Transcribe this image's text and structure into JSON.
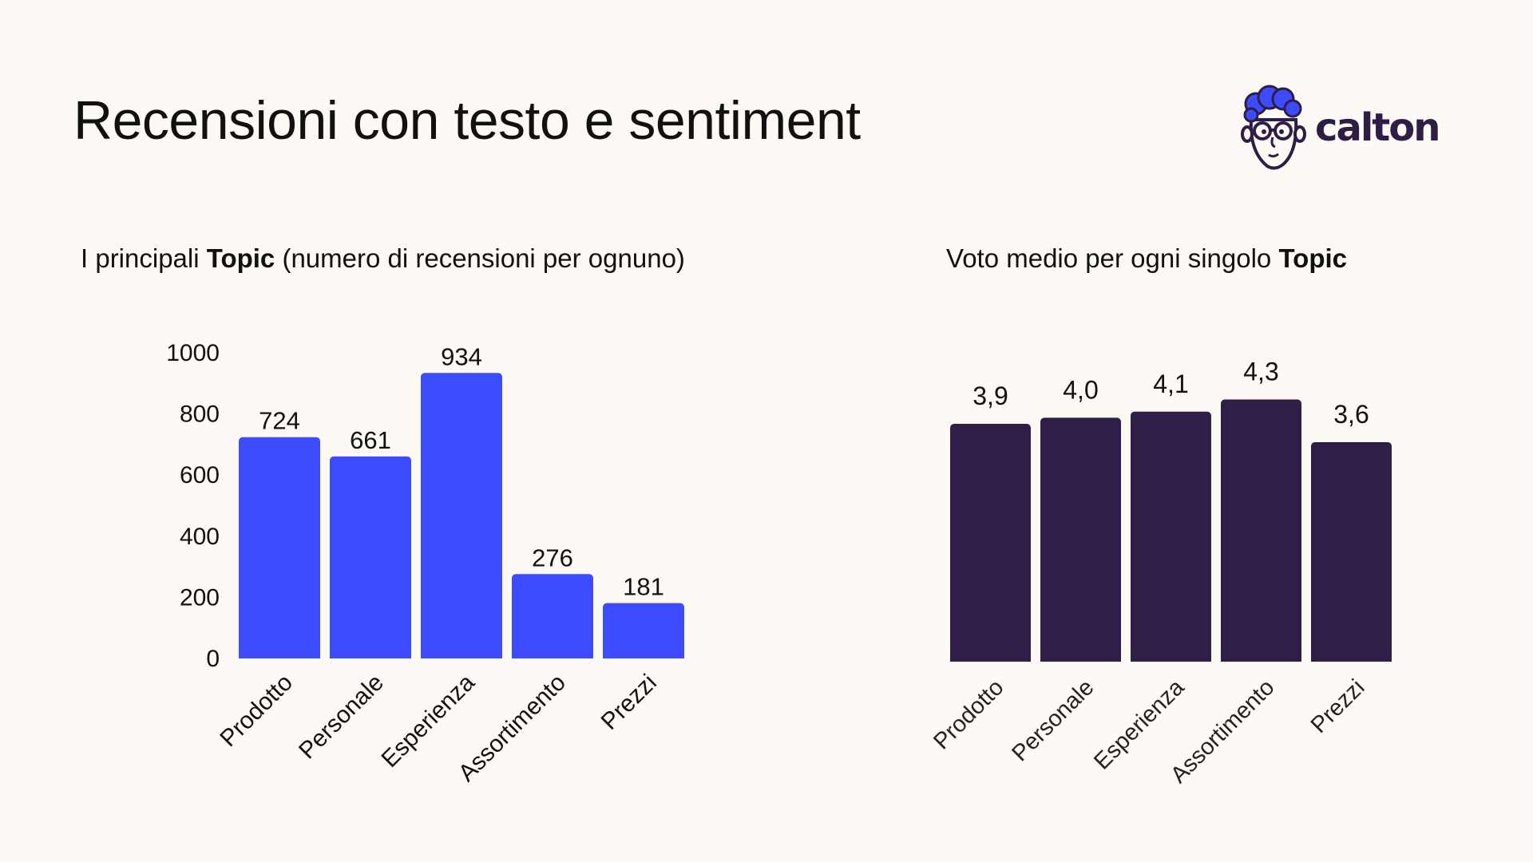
{
  "header": {
    "title": "Recensioni con testo e sentiment",
    "logo_text": "calton"
  },
  "subtitles": {
    "left": {
      "pre": "I principali ",
      "bold": "Topic",
      "post": " (numero di recensioni per ognuno)"
    },
    "right": {
      "pre": "Voto medio per ogni singolo ",
      "bold": "Topic",
      "post": ""
    }
  },
  "colors": {
    "background": "#FDF9F4",
    "bar_blue": "#3D4BFF",
    "bar_dark": "#2F1E47",
    "logo_hair": "#3D4BFF",
    "logo_dark": "#2E1E45"
  },
  "chart_data": [
    {
      "type": "bar",
      "title": "I principali Topic (numero di recensioni per ognuno)",
      "categories": [
        "Prodotto",
        "Personale",
        "Esperienza",
        "Assortimento",
        "Prezzi"
      ],
      "values": [
        724,
        661,
        934,
        276,
        181
      ],
      "value_labels": [
        "724",
        "661",
        "934",
        "276",
        "181"
      ],
      "xlabel": "",
      "ylabel": "",
      "ylim": [
        0,
        1000
      ],
      "yticks": [
        0,
        200,
        400,
        600,
        800,
        1000
      ],
      "ytick_labels": [
        "0",
        "200",
        "400",
        "600",
        "800",
        "1000"
      ],
      "grid": false,
      "legend": "none"
    },
    {
      "type": "bar",
      "title": "Voto medio per ogni singolo Topic",
      "categories": [
        "Prodotto",
        "Personale",
        "Esperienza",
        "Assortimento",
        "Prezzi"
      ],
      "values": [
        3.9,
        4.0,
        4.1,
        4.3,
        3.6
      ],
      "value_labels": [
        "3,9",
        "4,0",
        "4,1",
        "4,3",
        "3,6"
      ],
      "xlabel": "",
      "ylabel": "",
      "ylim": [
        0,
        5
      ],
      "grid": false,
      "legend": "none"
    }
  ]
}
